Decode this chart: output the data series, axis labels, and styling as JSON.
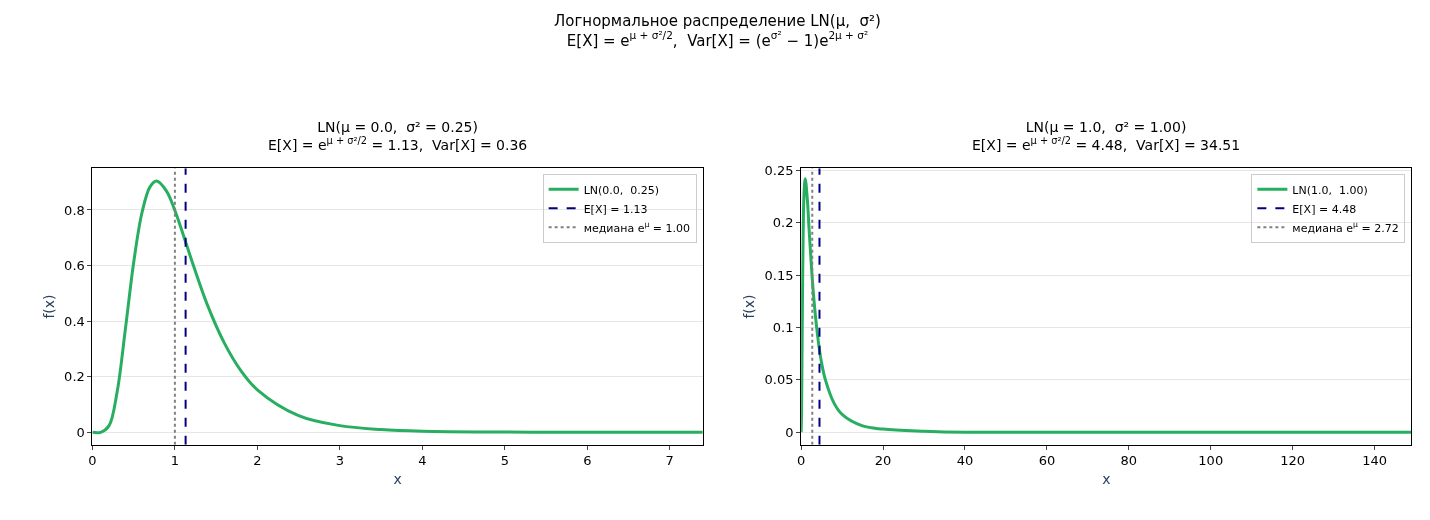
{
  "chart_data": [
    {
      "type": "line",
      "title": "LN(μ = 0.0,  σ² = 0.25)",
      "subtitle": "E[X] = e$^{μ + σ²/2}$ = 1.13,  Var[X] = 0.36",
      "xlabel": "x",
      "ylabel": "f(x)",
      "annotations": [
        "Логнормальное распределение LN(μ,  σ²)",
        "E[X] = e$^{μ + σ²/2}$,  Var[X] = (e$^{σ²}$ − 1)e$^{2μ + σ²}$"
      ],
      "x": [
        0,
        0.1,
        0.2,
        0.3,
        0.4,
        0.5,
        0.6,
        0.7,
        0.78,
        0.9,
        1.0,
        1.1,
        1.2,
        1.4,
        1.6,
        1.8,
        2.0,
        2.5,
        3,
        3.5,
        4,
        5,
        6,
        7.4
      ],
      "series": [
        {
          "name": "LN(0.0,  0.25)",
          "color": "#27ae60",
          "values": [
            0,
            0,
            0.023,
            0.146,
            0.372,
            0.61,
            0.789,
            0.884,
            0.904,
            0.867,
            0.798,
            0.712,
            0.622,
            0.454,
            0.321,
            0.222,
            0.153,
            0.06,
            0.024,
            0.01,
            0.004,
            0.001,
            0,
            0
          ]
        },
        {
          "type": "line",
          "name": "E[X] = 1.13",
          "color": "#000080",
          "line_style": "dashed",
          "x": [
            1.13,
            1.13
          ],
          "values": [
            -0.045,
            0.95
          ]
        },
        {
          "type": "line",
          "name": "медиана e$^{μ}$ = 1.00",
          "color": "#808080",
          "line_style": "dotted",
          "x": [
            1.0,
            1.0
          ],
          "values": [
            -0.045,
            0.95
          ]
        }
      ],
      "xlim": [
        0,
        7.4
      ],
      "ylim": [
        -0.045,
        0.95
      ],
      "xticks": [
        0,
        1,
        2,
        3,
        4,
        5,
        6,
        7
      ],
      "yticks": [
        0,
        0.2,
        0.4,
        0.6,
        0.8
      ],
      "grid": "y",
      "legend": "top right",
      "marker": "none",
      "line_style": "solid"
    },
    {
      "type": "line",
      "title": "LN(μ = 1.0,  σ² = 1.00)",
      "subtitle": "E[X] = e$^{μ + σ²/2}$ = 4.48,  Var[X] = 34.51",
      "xlabel": "x",
      "ylabel": "f(x)",
      "x": [
        0,
        0.1,
        0.2,
        0.3,
        0.5,
        0.7,
        1.0,
        1.5,
        2,
        3,
        4,
        5,
        6,
        8,
        10,
        15,
        20,
        30,
        40,
        60,
        100,
        149
      ],
      "series": [
        {
          "name": "LN(1.0,  1.00)",
          "color": "#27ae60",
          "values": [
            0,
            0.017,
            0.067,
            0.117,
            0.19,
            0.227,
            0.242,
            0.223,
            0.19,
            0.132,
            0.093,
            0.066,
            0.049,
            0.028,
            0.017,
            0.006,
            0.003,
            0.001,
            0,
            0,
            0,
            0
          ]
        },
        {
          "type": "line",
          "name": "E[X] = 4.48",
          "color": "#000080",
          "line_style": "dashed",
          "x": [
            4.48,
            4.48
          ],
          "values": [
            -0.012,
            0.252
          ]
        },
        {
          "type": "line",
          "name": "медиана e$^{μ}$ = 2.72",
          "color": "#808080",
          "line_style": "dotted",
          "x": [
            2.72,
            2.72
          ],
          "values": [
            -0.012,
            0.252
          ]
        }
      ],
      "xlim": [
        0,
        149
      ],
      "ylim": [
        -0.012,
        0.252
      ],
      "xticks": [
        0,
        20,
        40,
        60,
        80,
        100,
        120,
        140
      ],
      "yticks": [
        0,
        0.05,
        0.1,
        0.15,
        0.2,
        0.25
      ],
      "grid": "y",
      "legend": "top right",
      "marker": "none",
      "line_style": "solid"
    }
  ]
}
